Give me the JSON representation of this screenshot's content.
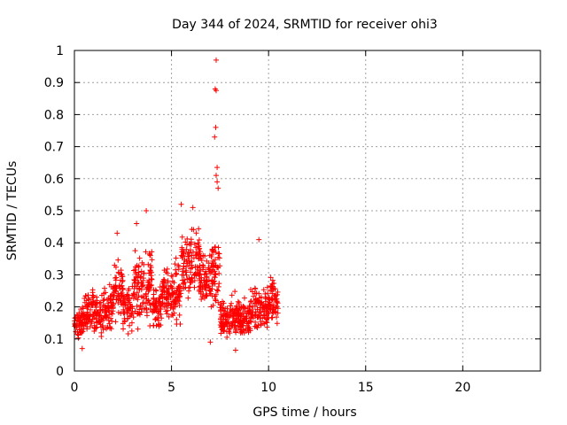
{
  "chart_data": {
    "type": "scatter",
    "title": "Day 344 of 2024, SRMTID for receiver ohi3",
    "xlabel": "GPS time / hours",
    "ylabel": "SRMTID / TECUs",
    "xlim": [
      0,
      24
    ],
    "ylim": [
      0,
      1
    ],
    "x_ticks": [
      0,
      5,
      10,
      15,
      20
    ],
    "y_ticks": [
      0,
      0.1,
      0.2,
      0.3,
      0.4,
      0.5,
      0.6,
      0.7,
      0.8,
      0.9,
      1
    ],
    "grid": true,
    "marker": "+",
    "color": "#ff0000",
    "x_data_range": [
      0,
      10.5
    ],
    "clusters": [
      {
        "start": 0.0,
        "end": 0.5,
        "center": 0.15,
        "spread": 0.06
      },
      {
        "start": 0.5,
        "end": 1.0,
        "center": 0.19,
        "spread": 0.1
      },
      {
        "start": 1.0,
        "end": 1.5,
        "center": 0.17,
        "spread": 0.09
      },
      {
        "start": 1.5,
        "end": 2.0,
        "center": 0.2,
        "spread": 0.1
      },
      {
        "start": 2.0,
        "end": 2.5,
        "center": 0.25,
        "spread": 0.12
      },
      {
        "start": 2.5,
        "end": 3.0,
        "center": 0.2,
        "spread": 0.1
      },
      {
        "start": 3.0,
        "end": 3.5,
        "center": 0.26,
        "spread": 0.15
      },
      {
        "start": 3.5,
        "end": 4.0,
        "center": 0.27,
        "spread": 0.16
      },
      {
        "start": 4.0,
        "end": 4.5,
        "center": 0.2,
        "spread": 0.08
      },
      {
        "start": 4.5,
        "end": 5.0,
        "center": 0.24,
        "spread": 0.1
      },
      {
        "start": 5.0,
        "end": 5.5,
        "center": 0.24,
        "spread": 0.13
      },
      {
        "start": 5.5,
        "end": 6.0,
        "center": 0.32,
        "spread": 0.15
      },
      {
        "start": 6.0,
        "end": 6.5,
        "center": 0.33,
        "spread": 0.15
      },
      {
        "start": 6.5,
        "end": 7.0,
        "center": 0.28,
        "spread": 0.12
      },
      {
        "start": 7.0,
        "end": 7.5,
        "center": 0.3,
        "spread": 0.16
      },
      {
        "start": 7.5,
        "end": 8.0,
        "center": 0.16,
        "spread": 0.08
      },
      {
        "start": 8.0,
        "end": 8.5,
        "center": 0.17,
        "spread": 0.09
      },
      {
        "start": 8.5,
        "end": 9.0,
        "center": 0.16,
        "spread": 0.08
      },
      {
        "start": 9.0,
        "end": 9.5,
        "center": 0.19,
        "spread": 0.09
      },
      {
        "start": 9.5,
        "end": 10.0,
        "center": 0.2,
        "spread": 0.1
      },
      {
        "start": 10.0,
        "end": 10.5,
        "center": 0.22,
        "spread": 0.1
      }
    ],
    "notable_points": [
      {
        "x": 7.3,
        "y": 0.97
      },
      {
        "x": 7.25,
        "y": 0.88
      },
      {
        "x": 7.3,
        "y": 0.875
      },
      {
        "x": 7.28,
        "y": 0.76
      },
      {
        "x": 7.22,
        "y": 0.73
      },
      {
        "x": 7.35,
        "y": 0.635
      },
      {
        "x": 7.3,
        "y": 0.61
      },
      {
        "x": 7.35,
        "y": 0.59
      },
      {
        "x": 7.4,
        "y": 0.57
      },
      {
        "x": 5.5,
        "y": 0.52
      },
      {
        "x": 6.1,
        "y": 0.51
      },
      {
        "x": 3.7,
        "y": 0.5
      },
      {
        "x": 3.2,
        "y": 0.46
      },
      {
        "x": 2.2,
        "y": 0.43
      },
      {
        "x": 9.5,
        "y": 0.41
      },
      {
        "x": 0.4,
        "y": 0.07
      },
      {
        "x": 8.3,
        "y": 0.065
      },
      {
        "x": 7.0,
        "y": 0.09
      }
    ]
  }
}
